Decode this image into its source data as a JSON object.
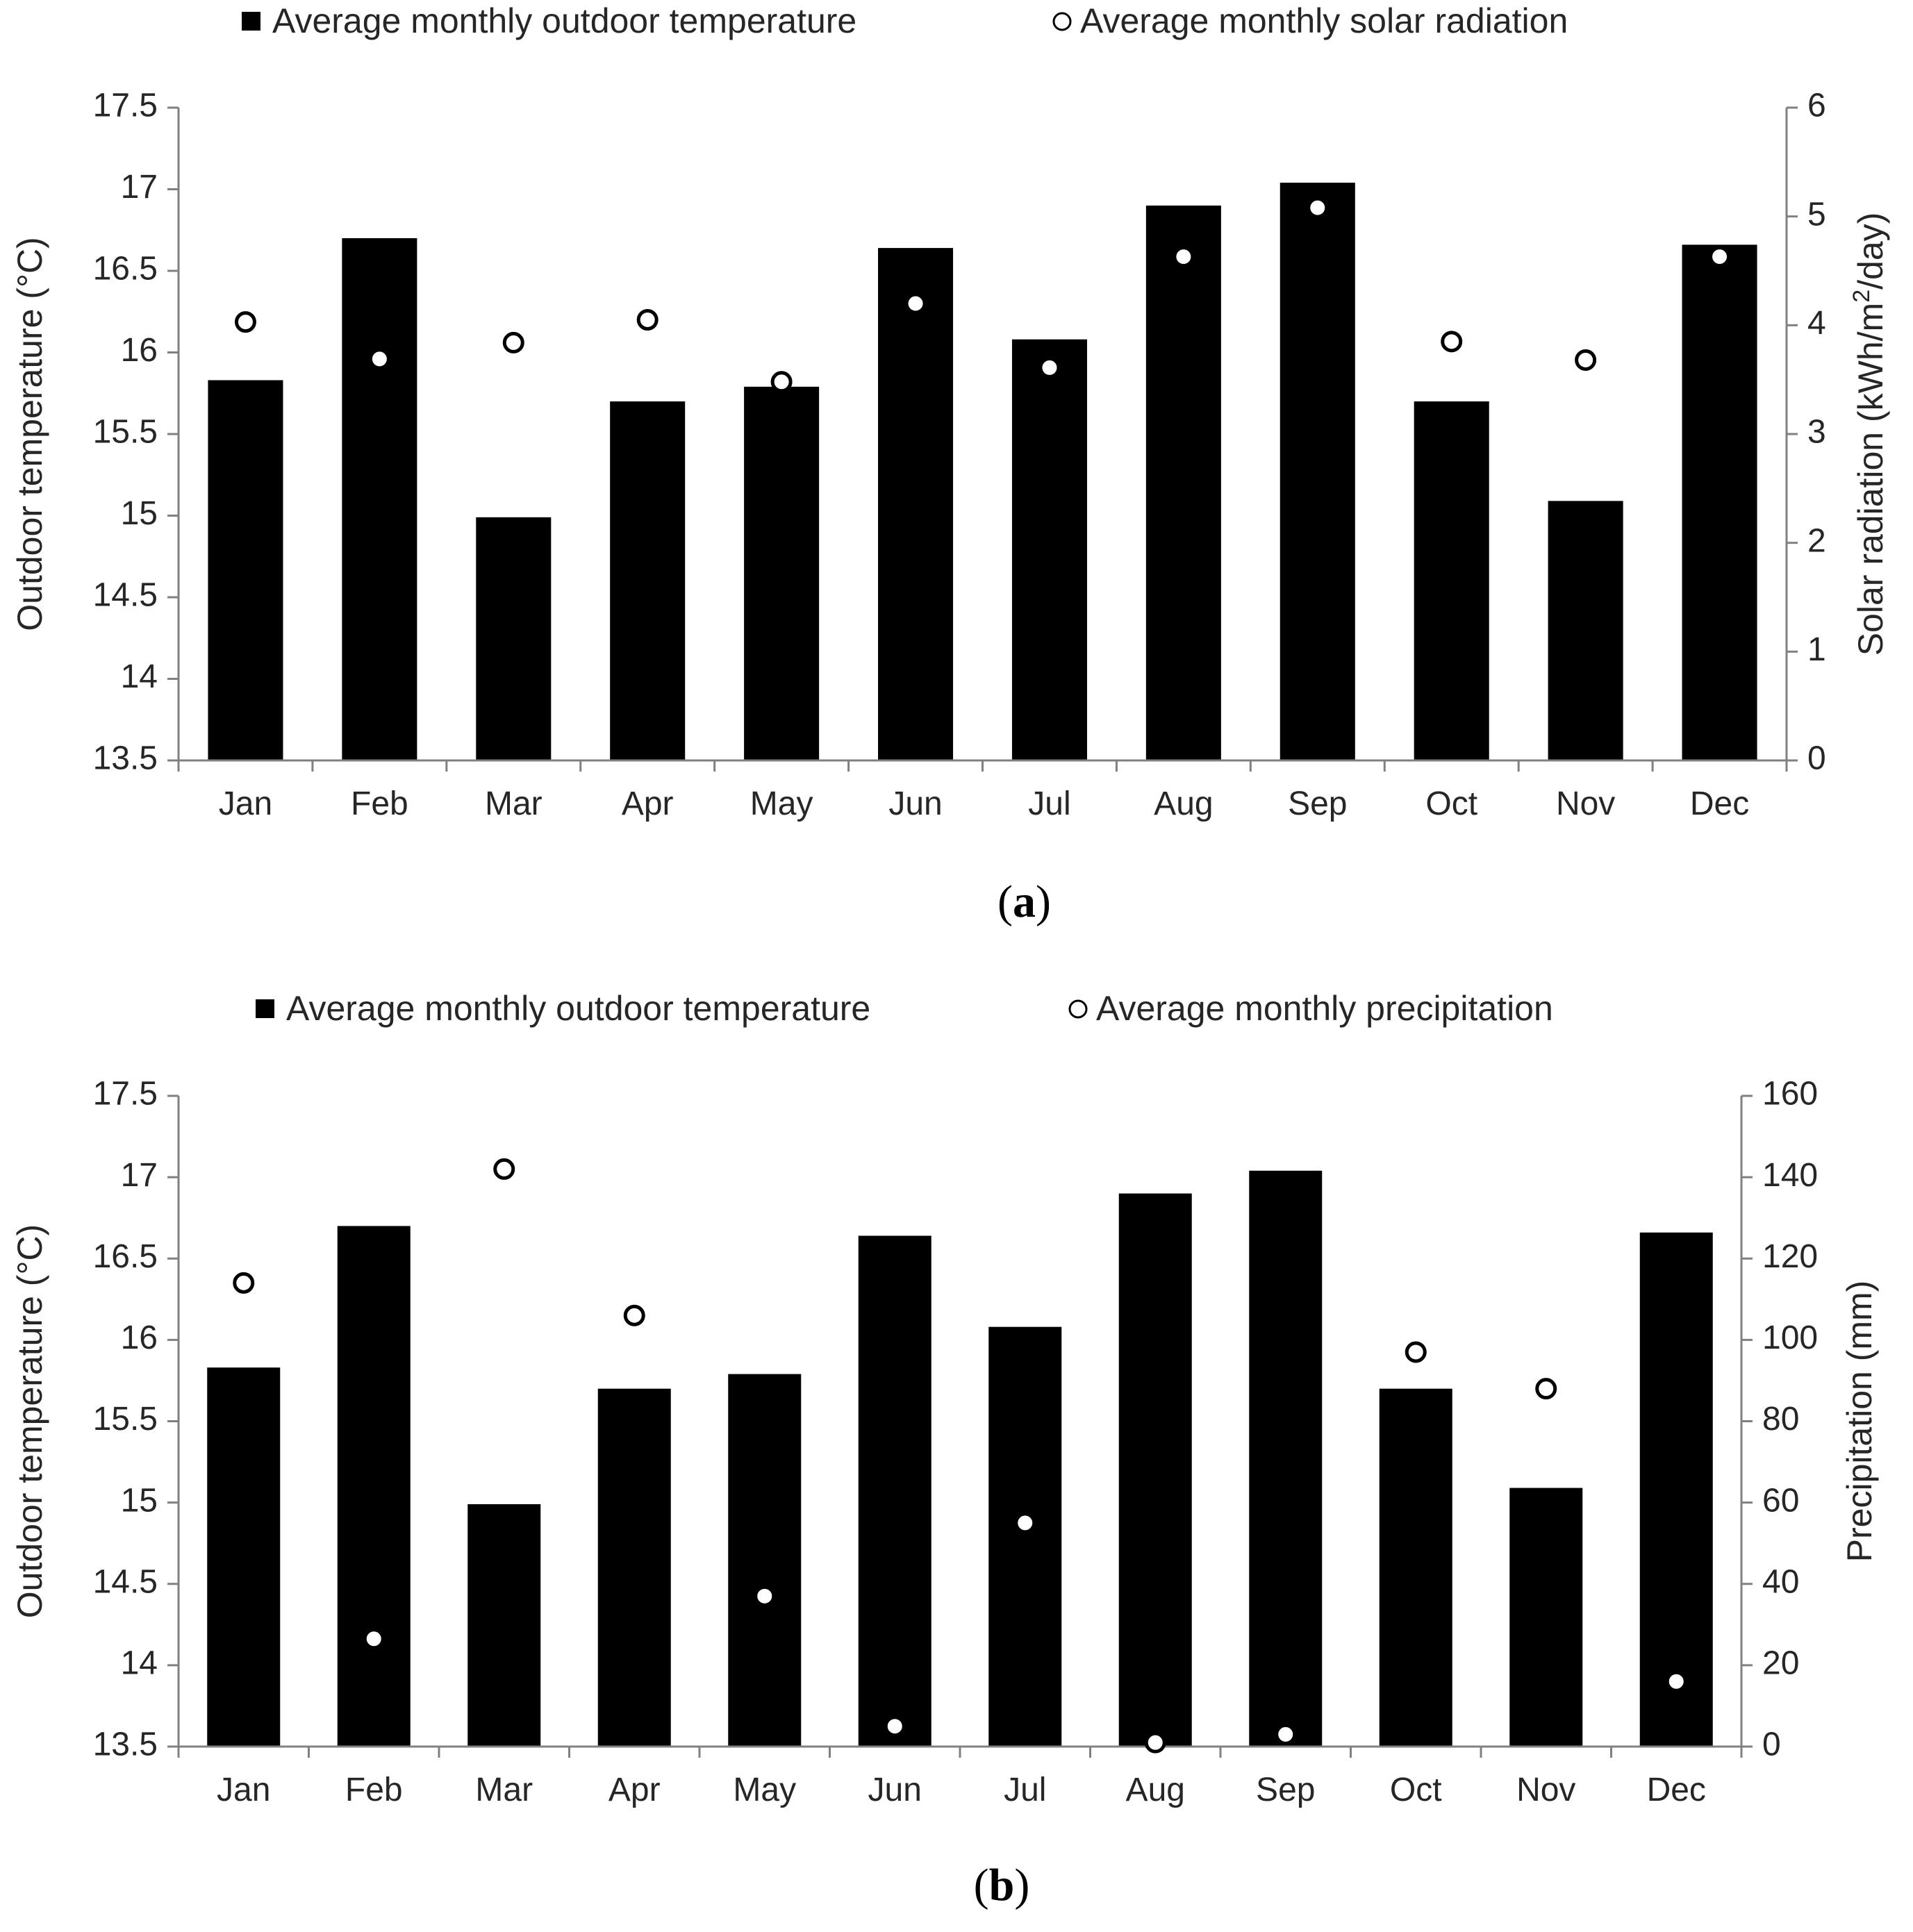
{
  "colors": {
    "bar": "#000000",
    "marker_fill": "#ffffff",
    "marker_stroke": "#000000",
    "axis": "#808080",
    "text": "#262626"
  },
  "chart_data": [
    {
      "type": "bar",
      "panel_label": "a",
      "categories": [
        "Jan",
        "Feb",
        "Mar",
        "Apr",
        "May",
        "Jun",
        "Jul",
        "Aug",
        "Sep",
        "Oct",
        "Nov",
        "Dec"
      ],
      "series": [
        {
          "name": "Average monthly outdoor temperature",
          "kind": "bar",
          "axis": "left",
          "values": [
            15.83,
            16.7,
            14.99,
            15.7,
            15.79,
            16.64,
            16.08,
            16.9,
            17.04,
            15.7,
            15.09,
            16.66
          ]
        },
        {
          "name": "Average monthly solar radiation",
          "kind": "scatter",
          "axis": "right",
          "values": [
            4.03,
            3.69,
            3.84,
            4.05,
            3.48,
            4.2,
            3.61,
            4.63,
            5.08,
            3.85,
            3.68,
            4.63
          ]
        }
      ],
      "ylabel": "Outdoor temperature (°C)",
      "ylabel2": [
        "Solar radiation (kWh/m",
        "2",
        "/day)"
      ],
      "ylim": [
        13.5,
        17.5
      ],
      "yticks": [
        "13.5",
        "14",
        "14.5",
        "15",
        "15.5",
        "16",
        "16.5",
        "17",
        "17.5"
      ],
      "ylim2": [
        0,
        6
      ],
      "yticks2": [
        "0",
        "1",
        "2",
        "3",
        "4",
        "5",
        "6"
      ],
      "legend": "top",
      "grid": false
    },
    {
      "type": "bar",
      "panel_label": "b",
      "categories": [
        "Jan",
        "Feb",
        "Mar",
        "Apr",
        "May",
        "Jun",
        "Jul",
        "Aug",
        "Sep",
        "Oct",
        "Nov",
        "Dec"
      ],
      "series": [
        {
          "name": "Average monthly outdoor temperature",
          "kind": "bar",
          "axis": "left",
          "values": [
            15.83,
            16.7,
            14.99,
            15.7,
            15.79,
            16.64,
            16.08,
            16.9,
            17.04,
            15.7,
            15.09,
            16.66
          ]
        },
        {
          "name": "Average monthly precipitation",
          "kind": "scatter",
          "axis": "right",
          "values": [
            114,
            26.5,
            142,
            106,
            37,
            5,
            55,
            1,
            3,
            97,
            88,
            16
          ]
        }
      ],
      "ylabel": "Outdoor temperature (°C)",
      "ylabel2": "Precipitation (mm)",
      "ylim": [
        13.5,
        17.5
      ],
      "yticks": [
        "13.5",
        "14",
        "14.5",
        "15",
        "15.5",
        "16",
        "16.5",
        "17",
        "17.5"
      ],
      "ylim2": [
        0,
        160
      ],
      "yticks2": [
        "0",
        "20",
        "40",
        "60",
        "80",
        "100",
        "120",
        "140",
        "160"
      ],
      "legend": "top",
      "grid": false
    }
  ]
}
